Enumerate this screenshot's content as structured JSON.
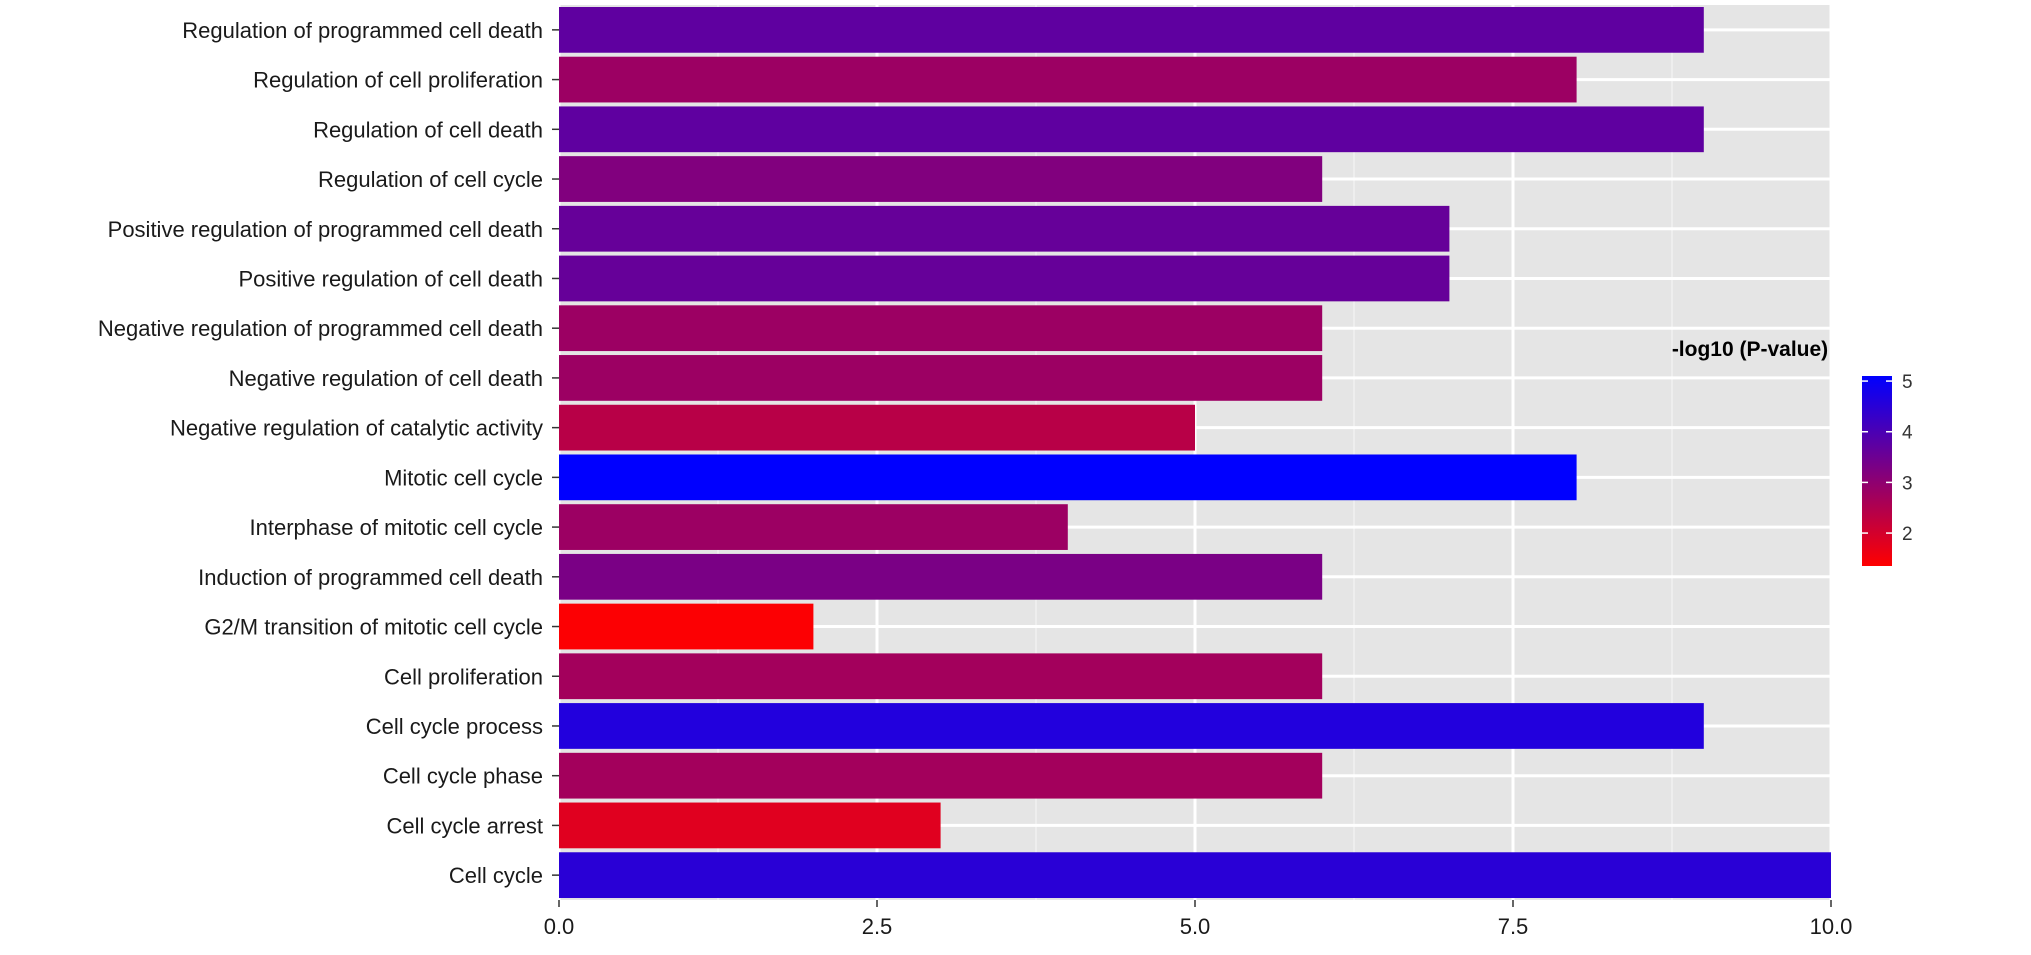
{
  "chart_data": {
    "type": "bar",
    "orientation": "horizontal",
    "categories": [
      "Regulation of programmed cell death",
      "Regulation of cell proliferation",
      "Regulation of cell death",
      "Regulation of cell cycle",
      "Positive regulation of programmed cell death",
      "Positive regulation of cell death",
      "Negative regulation of programmed cell death",
      "Negative regulation of cell death",
      "Negative regulation of catalytic activity",
      "Mitotic cell cycle",
      "Interphase of mitotic cell cycle",
      "Induction of programmed cell death",
      "G2/M transition of mitotic cell cycle",
      "Cell proliferation",
      "Cell cycle process",
      "Cell cycle phase",
      "Cell cycle arrest",
      "Cell cycle"
    ],
    "values": [
      9,
      8,
      9,
      6,
      7,
      7,
      6,
      6,
      5,
      8,
      4,
      6,
      2,
      6,
      9,
      6,
      3,
      10
    ],
    "color_values": [
      3.7,
      2.8,
      3.7,
      3.2,
      3.6,
      3.6,
      2.8,
      2.8,
      2.4,
      5.1,
      2.8,
      3.3,
      1.4,
      2.7,
      4.6,
      2.7,
      1.8,
      4.5
    ],
    "xlim": [
      0,
      10
    ],
    "xticks": [
      "0.0",
      "2.5",
      "5.0",
      "7.5",
      "10.0"
    ],
    "xtick_values": [
      0,
      2.5,
      5,
      7.5,
      10
    ],
    "xlabel": "",
    "ylabel": "",
    "grid": true,
    "panel_background": "#e5e5e5",
    "legend": {
      "title": "-log10 (P-value)",
      "position": "right",
      "range": [
        1.35,
        5.1
      ],
      "ticks": [
        "5",
        "4",
        "3",
        "2"
      ],
      "tick_values": [
        5,
        4,
        3,
        2
      ],
      "color_low": "#ff0000",
      "color_high": "#0000ff"
    }
  }
}
